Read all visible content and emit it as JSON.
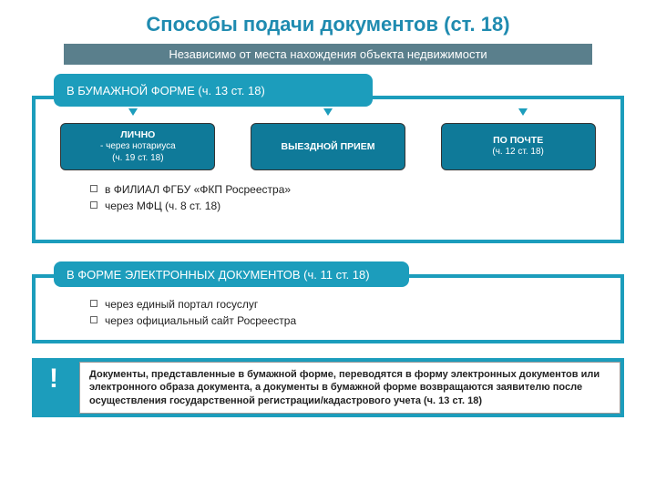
{
  "colors": {
    "title": "#1f8bb0",
    "subtitle_bg": "#5a7f8c",
    "teal_header": "#1c9dbc",
    "teal_border": "#1c9dbc",
    "card_bg": "#0f7a99",
    "card_border": "#333333",
    "note_bg": "#1c9dbc"
  },
  "fonts": {
    "title_size": 22,
    "subtitle_size": 13
  },
  "title": "Способы подачи документов (ст. 18)",
  "subtitle": "Независимо от места нахождения объекта недвижимости",
  "paper": {
    "header": "В БУМАЖНОЙ ФОРМЕ (ч. 13 ст. 18)",
    "options": [
      {
        "title": "ЛИЧНО",
        "sub1": "- через нотариуса",
        "sub2": "(ч. 19 ст. 18)"
      },
      {
        "title": "ВЫЕЗДНОЙ ПРИЕМ",
        "sub1": "",
        "sub2": ""
      },
      {
        "title": "ПО ПОЧТЕ",
        "sub1": "(ч. 12 ст. 18)",
        "sub2": ""
      }
    ],
    "bullets": [
      "в ФИЛИАЛ ФГБУ «ФКП Росреестра»",
      "через МФЦ  (ч. 8 ст. 18)"
    ]
  },
  "electronic": {
    "header": "В ФОРМЕ ЭЛЕКТРОННЫХ ДОКУМЕНТОВ (ч. 11 ст. 18)",
    "bullets": [
      "через единый портал госуслуг",
      "через официальный сайт Росреестра"
    ]
  },
  "note": {
    "bang": "!",
    "text": "Документы, представленные в бумажной форме, переводятся в форму электронных документов или электронного образа документа, а документы в бумажной форме возвращаются заявителю после осуществления государственной регистрации/кадастрового учета (ч. 13 ст. 18)"
  }
}
